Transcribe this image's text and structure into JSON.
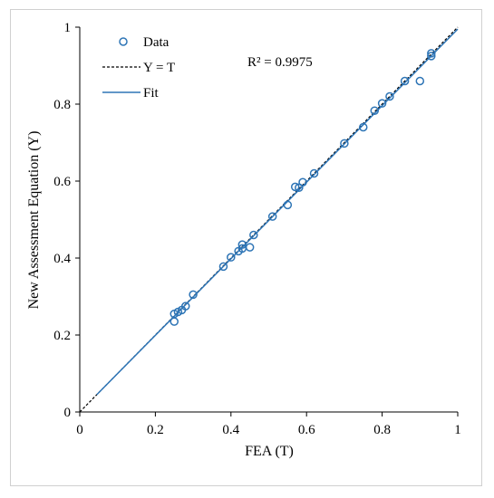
{
  "chart_data": {
    "type": "scatter",
    "xlabel": "FEA (T)",
    "ylabel": "New Assessment Equation (Y)",
    "xlim": [
      0,
      1
    ],
    "ylim": [
      0,
      1
    ],
    "x_ticks": [
      "0",
      "0.2",
      "0.4",
      "0.6",
      "0.8",
      "1"
    ],
    "y_ticks": [
      "0",
      "0.2",
      "0.4",
      "0.6",
      "0.8",
      "1"
    ],
    "grid": false,
    "legend_position": "top-left",
    "annotation": "R² = 0.9975",
    "colors": {
      "data": "#2E75B6",
      "fit": "#2E75B6",
      "reference": "#000000"
    },
    "series": [
      {
        "name": "Data",
        "kind": "scatter",
        "points": [
          [
            0.25,
            0.255
          ],
          [
            0.25,
            0.235
          ],
          [
            0.26,
            0.26
          ],
          [
            0.27,
            0.265
          ],
          [
            0.28,
            0.275
          ],
          [
            0.3,
            0.305
          ],
          [
            0.38,
            0.378
          ],
          [
            0.4,
            0.402
          ],
          [
            0.42,
            0.418
          ],
          [
            0.43,
            0.425
          ],
          [
            0.43,
            0.435
          ],
          [
            0.45,
            0.428
          ],
          [
            0.46,
            0.46
          ],
          [
            0.51,
            0.508
          ],
          [
            0.55,
            0.538
          ],
          [
            0.57,
            0.585
          ],
          [
            0.58,
            0.583
          ],
          [
            0.59,
            0.597
          ],
          [
            0.62,
            0.62
          ],
          [
            0.7,
            0.698
          ],
          [
            0.75,
            0.74
          ],
          [
            0.78,
            0.783
          ],
          [
            0.8,
            0.802
          ],
          [
            0.82,
            0.82
          ],
          [
            0.86,
            0.86
          ],
          [
            0.9,
            0.86
          ],
          [
            0.93,
            0.925
          ],
          [
            0.93,
            0.932
          ]
        ]
      },
      {
        "name": "Y = T",
        "kind": "line",
        "style": "dashed",
        "points": [
          [
            0,
            0
          ],
          [
            1,
            1
          ]
        ]
      },
      {
        "name": "Fit",
        "kind": "line",
        "style": "solid",
        "points": [
          [
            0.045,
            0.045
          ],
          [
            1,
            0.995
          ]
        ]
      }
    ]
  }
}
